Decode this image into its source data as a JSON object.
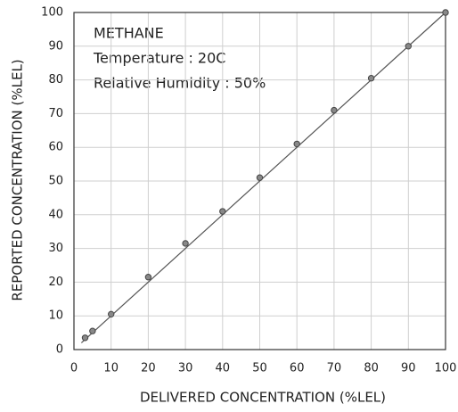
{
  "chart_data": {
    "type": "scatter",
    "xlabel": "DELIVERED CONCENTRATION (%LEL)",
    "ylabel": "REPORTED CONCENTRATION (%LEL)",
    "annotations": [
      "METHANE",
      "Temperature : 20C",
      "Relative Humidity : 50%"
    ],
    "series": [
      {
        "color": "#888888",
        "x": [
          3,
          5,
          10,
          20,
          30,
          40,
          50,
          60,
          70,
          80,
          90,
          100
        ],
        "values": [
          3.5,
          5.5,
          10.5,
          21.5,
          31.5,
          41,
          51,
          61,
          71,
          80.5,
          90,
          100
        ]
      },
      {
        "type": "line",
        "color": "#555555",
        "x": [
          2,
          100
        ],
        "values": [
          2,
          100
        ]
      }
    ],
    "xlim": [
      0,
      100
    ],
    "xticks": [
      0,
      10,
      20,
      30,
      40,
      50,
      60,
      70,
      80,
      90,
      100
    ],
    "ylim": [
      0,
      100
    ],
    "yticks": [
      0,
      10,
      20,
      30,
      40,
      50,
      60,
      70,
      80,
      90,
      100
    ],
    "grid": true
  }
}
